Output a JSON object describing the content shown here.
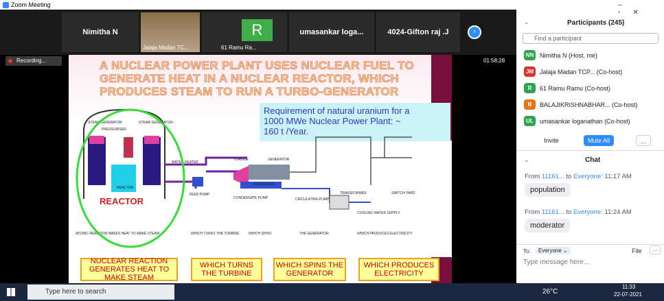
{
  "window": {
    "title": "Zoom Meeting"
  },
  "video_strip": {
    "tiles": [
      "Nimitha N",
      "Jalaja Madan TC...",
      "61 Ramu Ra...",
      "umasankar loga...",
      "4024-Gifton raj .J"
    ],
    "avatar": "R"
  },
  "meeting": {
    "recording": "Recording...",
    "timer": "01:58:28"
  },
  "slide": {
    "title_lines": [
      "A NUCLEAR POWER PLANT USES NUCLEAR FUEL TO",
      "GENERATE HEAT IN A NUCLEAR REACTOR, WHICH",
      "PRODUCES STEAM TO RUN A TURBO-GENERATOR"
    ],
    "note_lines": [
      "Requirement of natural uranium for a",
      "1000 MWe Nuclear Power Plant:  ~",
      "160 t /Year."
    ],
    "labels": {
      "steam_generator_1": "STEAM GENERATOR",
      "steam_generator_2": "STEAM GENERATOR",
      "pressuriser": "PRESSURISER",
      "reactor_small": "REACTOR",
      "reactor": "REACTOR",
      "turbine": "TURBINE",
      "generator": "GENERATOR",
      "water_heater": "WATER HEATER",
      "feed_pump": "FEED PUMP",
      "condensate_pump": "CONDENSATE PUMP",
      "condenser": "CONDENSER",
      "circulating_pump": "CIRCULATING PUMP",
      "transformer": "TRANSFORMER",
      "switch_yard": "SWITCH YARD",
      "cooling_water": "COOLING WATER SUPPLY"
    },
    "captions": [
      "ATOMIC REACTION MAKES HEAT TO MAKE STEAM",
      "WHICH TURNS THE TURBINE",
      "WHICH SPINS",
      "THE GENERATOR",
      "WHICH PRODUCES ELECTRICITY"
    ],
    "boxes": [
      "NUCLEAR REACTION GENERATES HEAT TO MAKE STEAM",
      "WHICH TURNS THE TURBINE",
      "WHICH SPINS THE GENERATOR",
      "WHICH PRODUCES ELECTRICITY"
    ]
  },
  "participants": {
    "header": "Participants (245)",
    "search": "Find a participant",
    "list": [
      {
        "initials": "NN",
        "name": "Nimitha N (Host, me)",
        "color": "#2ea44f"
      },
      {
        "initials": "JM",
        "name": "Jalaja Madan TCP... (Co-host)",
        "color": "#d9342b"
      },
      {
        "initials": "R",
        "name": "61 Ramu Ramu (Co-host)",
        "color": "#2ea44f"
      },
      {
        "initials": "B",
        "name": "BALAJIKRISHNABHAR... (Co-host)",
        "color": "#e8741a"
      },
      {
        "initials": "UL",
        "name": "umasankar loganathan (Co-host)",
        "color": "#2ea44f"
      }
    ],
    "buttons": [
      "Invite",
      "Mute All",
      "..."
    ]
  },
  "chat": {
    "header": "Chat",
    "from_word": "From",
    "to_word": "to",
    "messages": [
      {
        "sender": "11161...",
        "recipient": "Everyone:",
        "time": "11:17 AM",
        "text": "population"
      },
      {
        "sender": "11161...",
        "recipient": "Everyone:",
        "time": "11:24 AM",
        "text": "moderator"
      }
    ],
    "to_label": "To:",
    "to_value": "Everyone ⌄",
    "file": "File",
    "more": "...",
    "placeholder": "Type message here..."
  },
  "taskbar": {
    "search": "Type here to search",
    "weather": "26°C",
    "time": "11:33",
    "date": "22-07-2021"
  }
}
